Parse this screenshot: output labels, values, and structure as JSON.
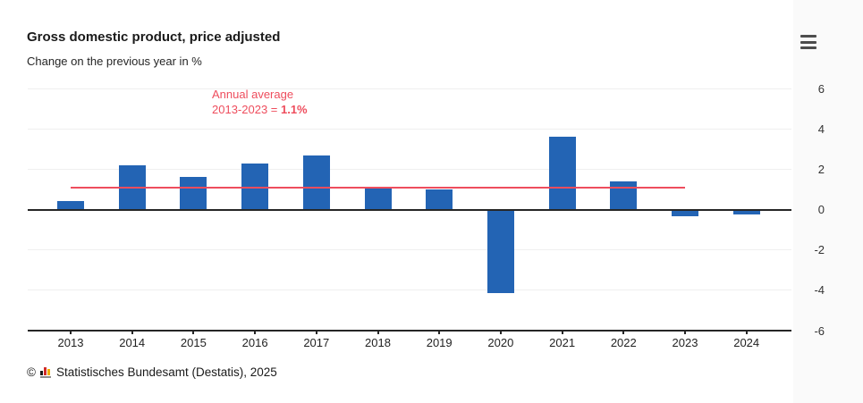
{
  "header": {
    "title": "Gross domestic product, price adjusted",
    "subtitle": "Change on the previous year in %"
  },
  "annotation": {
    "line1": "Annual average",
    "line2_prefix": "2013-2023 = ",
    "line2_value": "1.1%"
  },
  "chart_data": {
    "type": "bar",
    "title": "Gross domestic product, price adjusted",
    "subtitle": "Change on the previous year in %",
    "categories": [
      "2013",
      "2014",
      "2015",
      "2016",
      "2017",
      "2018",
      "2019",
      "2020",
      "2021",
      "2022",
      "2023",
      "2024"
    ],
    "values": [
      0.4,
      2.2,
      1.6,
      2.3,
      2.7,
      1.1,
      1.0,
      -4.1,
      3.6,
      1.4,
      -0.3,
      -0.2
    ],
    "unit": "%",
    "ylim": [
      -6,
      6
    ],
    "yticks": [
      6,
      4,
      2,
      0,
      -2,
      -4,
      -6
    ],
    "y_axis_side": "right",
    "grid": "horizontal",
    "bar_color": "#2364b4",
    "grid_color": "#efefef",
    "axis_color": "#262626",
    "average_line": {
      "value": 1.1,
      "from_category": "2013",
      "to_category": "2023",
      "color": "#ee4d5d",
      "label": "Annual average 2013-2023 = 1.1%"
    }
  },
  "footer": {
    "copyright": "©",
    "source": "Statistisches Bundesamt (Destatis), 2025"
  }
}
